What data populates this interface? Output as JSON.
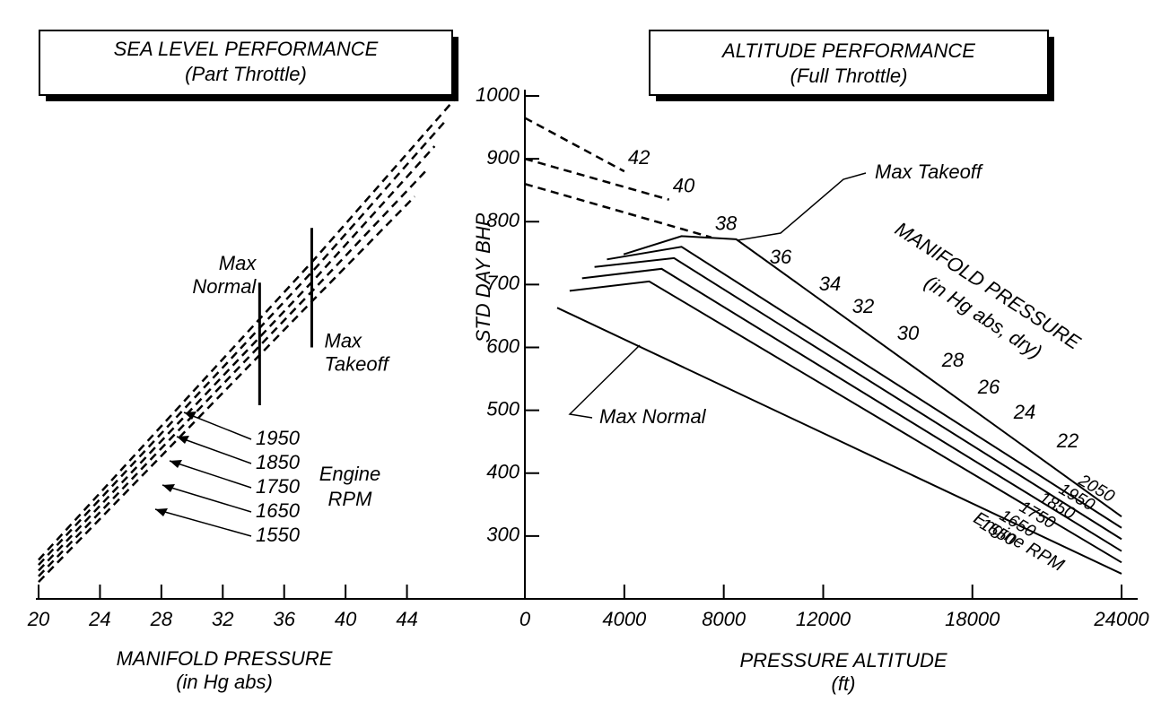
{
  "chart_data": [
    {
      "type": "line",
      "title": "SEA LEVEL PERFORMANCE",
      "subtitle": "(Part Throttle)",
      "x_label": "MANIFOLD PRESSURE",
      "x_sublabel": "(in Hg abs)",
      "color": "#000000",
      "xlim": [
        20,
        48
      ],
      "xticks": [
        20,
        24,
        28,
        32,
        36,
        40,
        44
      ],
      "ylim": [
        200,
        1000
      ],
      "series": [
        {
          "name": "1950",
          "x": [
            20,
            38,
            47.3
          ],
          "values": [
            262,
            741,
            1000
          ]
        },
        {
          "name": "1850",
          "x": [
            20,
            38,
            46.5
          ],
          "values": [
            254,
            725,
            960
          ]
        },
        {
          "name": "1750",
          "x": [
            20,
            38,
            45.8
          ],
          "values": [
            245,
            709,
            920
          ]
        },
        {
          "name": "1650",
          "x": [
            20,
            38,
            45.2
          ],
          "values": [
            236,
            694,
            880
          ]
        },
        {
          "name": "1550",
          "x": [
            20,
            38,
            44.5
          ],
          "values": [
            227,
            678,
            840
          ]
        }
      ],
      "limits": [
        {
          "label": [
            "Max",
            "Normal"
          ],
          "x": 34.4,
          "range": [
            508,
            703
          ]
        },
        {
          "label": [
            "Max",
            "Takeoff"
          ],
          "x": 37.8,
          "range": [
            600,
            790
          ]
        }
      ],
      "legend_title": [
        "Engine",
        "RPM"
      ]
    },
    {
      "type": "line",
      "title": "ALTITUDE PERFORMANCE",
      "subtitle": "(Full Throttle)",
      "y_label": "STD DAY BHP",
      "x_label": "PRESSURE ALTITUDE",
      "x_sublabel": "(ft)",
      "color": "#000000",
      "xlim": [
        0,
        24000
      ],
      "xticks": [
        0,
        4000,
        8000,
        12000,
        18000,
        24000
      ],
      "ylim": [
        200,
        1000
      ],
      "yticks": [
        300,
        400,
        500,
        600,
        700,
        800,
        900,
        1000
      ],
      "series": [
        {
          "name": "2050",
          "x": [
            3970,
            6300,
            8500,
            24000
          ],
          "values": [
            748,
            777,
            772,
            331
          ]
        },
        {
          "name": "1950",
          "x": [
            3300,
            6300,
            24000
          ],
          "values": [
            740,
            760,
            313
          ]
        },
        {
          "name": "1850",
          "x": [
            2800,
            6000,
            24000
          ],
          "values": [
            728,
            742,
            295
          ]
        },
        {
          "name": "1750",
          "x": [
            2300,
            5500,
            24000
          ],
          "values": [
            710,
            725,
            276
          ]
        },
        {
          "name": "1650",
          "x": [
            1800,
            5000,
            24000
          ],
          "values": [
            690,
            705,
            258
          ]
        },
        {
          "name": "1550",
          "x": [
            1300,
            24000
          ],
          "values": [
            663,
            240
          ]
        },
        {
          "name": "42",
          "dash": true,
          "x": [
            0,
            4000
          ],
          "values": [
            965,
            880
          ]
        },
        {
          "name": "40",
          "dash": true,
          "x": [
            0,
            5800
          ],
          "values": [
            900,
            835
          ]
        },
        {
          "name": "38",
          "dash": true,
          "x": [
            0,
            7500
          ],
          "values": [
            860,
            775
          ]
        }
      ],
      "contour_labels": [
        "36",
        "34",
        "32",
        "30",
        "28",
        "26",
        "24",
        "22"
      ],
      "contour_title": "MANIFOLD PRESSURE",
      "contour_subtitle": "(in Hg abs, dry)",
      "max_takeoff_label": "Max Takeoff",
      "max_normal_label": "Max Normal",
      "legend_title": "Engine RPM"
    }
  ]
}
